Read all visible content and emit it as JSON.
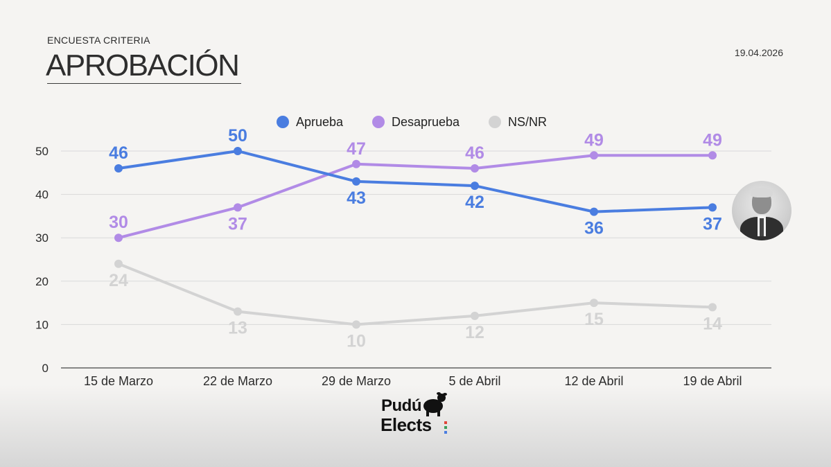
{
  "header": {
    "subtitle": "ENCUESTA CRITERIA",
    "title": "APROBACIÓN",
    "date": "19.04.2026"
  },
  "chart_data": {
    "type": "line",
    "categories": [
      "15 de Marzo",
      "22 de Marzo",
      "29 de Marzo",
      "5 de Abril",
      "12 de Abril",
      "19 de Abril"
    ],
    "series": [
      {
        "name": "Aprueba",
        "color": "#4a7de0",
        "values": [
          46,
          50,
          43,
          42,
          36,
          37
        ],
        "label_pos": [
          "above",
          "above",
          "below",
          "below",
          "below",
          "below"
        ]
      },
      {
        "name": "Desaprueba",
        "color": "#b18be6",
        "values": [
          30,
          37,
          47,
          46,
          49,
          49
        ],
        "label_pos": [
          "above",
          "below",
          "above",
          "above",
          "above",
          "above"
        ]
      },
      {
        "name": "NS/NR",
        "color": "#d3d3d3",
        "values": [
          24,
          13,
          10,
          12,
          15,
          14
        ],
        "label_pos": [
          "below",
          "below",
          "below",
          "below",
          "below",
          "below"
        ]
      }
    ],
    "yticks": [
      0,
      10,
      20,
      30,
      40,
      50
    ],
    "ylim": [
      0,
      50
    ],
    "grid": true,
    "legend_position": "top-center"
  },
  "logo": {
    "line1": "Pudú",
    "line2": "Elects",
    "dot_colors": [
      "#e0453a",
      "#3a9e5a",
      "#4a7de0"
    ]
  }
}
